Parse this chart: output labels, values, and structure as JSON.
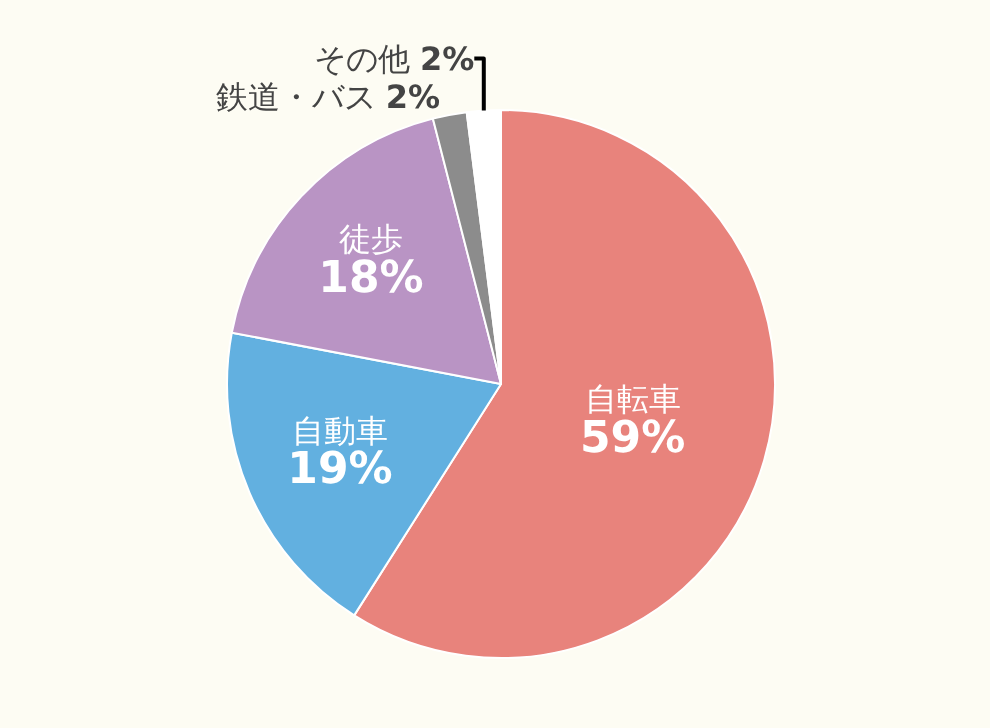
{
  "chart_data": {
    "type": "pie",
    "categories": [
      "自転車",
      "自動車",
      "徒歩",
      "鉄道・バス",
      "その他"
    ],
    "values": [
      59,
      19,
      18,
      2,
      2
    ],
    "value_labels": [
      "59%",
      "19%",
      "18%",
      "2%",
      "2%"
    ],
    "colors": [
      "#e8837c",
      "#62b0e0",
      "#b994c4",
      "#8c8c8c",
      "#ffffff"
    ],
    "legend": false
  }
}
